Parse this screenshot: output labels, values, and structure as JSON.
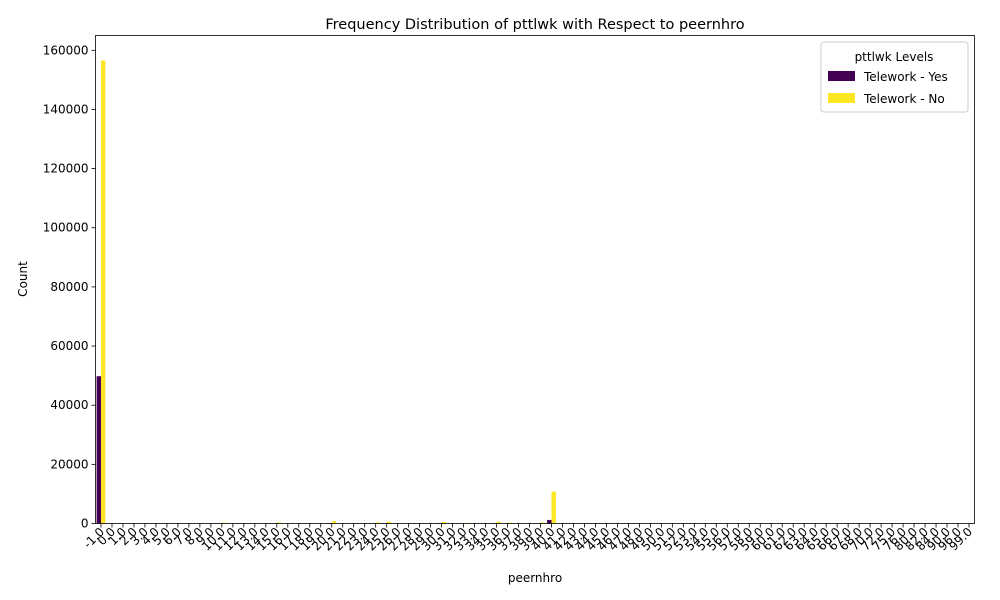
{
  "chart_data": {
    "type": "bar",
    "title": "Frequency Distribution of pttlwk with Respect to peernhro",
    "xlabel": "peernhro",
    "ylabel": "Count",
    "ylim": [
      0,
      165000
    ],
    "yticks": [
      0,
      20000,
      40000,
      60000,
      80000,
      100000,
      120000,
      140000,
      160000
    ],
    "categories": [
      "-1.0",
      "0.0",
      "1.0",
      "2.0",
      "3.0",
      "4.0",
      "5.0",
      "6.0",
      "7.0",
      "8.0",
      "9.0",
      "10.0",
      "11.0",
      "12.0",
      "13.0",
      "14.0",
      "15.0",
      "16.0",
      "17.0",
      "18.0",
      "19.0",
      "20.0",
      "21.0",
      "22.0",
      "23.0",
      "24.0",
      "25.0",
      "26.0",
      "27.0",
      "28.0",
      "29.0",
      "30.0",
      "31.0",
      "32.0",
      "33.0",
      "34.0",
      "35.0",
      "36.0",
      "37.0",
      "38.0",
      "39.0",
      "40.0",
      "41.0",
      "42.0",
      "43.0",
      "44.0",
      "45.0",
      "46.0",
      "47.0",
      "48.0",
      "49.0",
      "50.0",
      "51.0",
      "52.0",
      "53.0",
      "54.0",
      "55.0",
      "56.0",
      "57.0",
      "58.0",
      "59.0",
      "60.0",
      "61.0",
      "62.0",
      "63.0",
      "64.0",
      "65.0",
      "66.0",
      "67.0",
      "68.0",
      "70.0",
      "72.0",
      "75.0",
      "76.0",
      "80.0",
      "82.0",
      "84.0",
      "90.0",
      "96.0",
      "99.0"
    ],
    "series": [
      {
        "name": "Telework - Yes",
        "color": "#440154",
        "values": [
          49800,
          0,
          0,
          0,
          0,
          0,
          0,
          0,
          0,
          0,
          0,
          60,
          0,
          0,
          0,
          0,
          40,
          0,
          0,
          0,
          0,
          150,
          0,
          0,
          0,
          50,
          120,
          0,
          0,
          0,
          0,
          110,
          0,
          40,
          0,
          0,
          100,
          30,
          0,
          0,
          40,
          1200,
          0,
          0,
          0,
          0,
          40,
          0,
          0,
          0,
          0,
          30,
          0,
          0,
          0,
          0,
          0,
          0,
          0,
          0,
          0,
          10,
          0,
          0,
          0,
          0,
          0,
          0,
          0,
          0,
          0,
          0,
          0,
          0,
          0,
          0,
          0,
          0,
          0,
          0
        ]
      },
      {
        "name": "Telework - No",
        "color": "#fde725",
        "values": [
          156500,
          0,
          20,
          40,
          60,
          60,
          80,
          30,
          40,
          60,
          20,
          300,
          30,
          60,
          20,
          40,
          350,
          120,
          40,
          40,
          20,
          800,
          40,
          30,
          40,
          400,
          600,
          40,
          30,
          40,
          20,
          500,
          40,
          200,
          60,
          40,
          600,
          300,
          30,
          40,
          350,
          10800,
          60,
          40,
          60,
          30,
          150,
          20,
          30,
          50,
          20,
          120,
          20,
          30,
          20,
          20,
          40,
          20,
          20,
          20,
          20,
          60,
          20,
          20,
          20,
          20,
          30,
          20,
          20,
          20,
          30,
          20,
          20,
          20,
          20,
          20,
          20,
          20,
          20,
          20
        ]
      }
    ],
    "legend": {
      "title": "pttlwk Levels",
      "placement": "top-right"
    }
  }
}
